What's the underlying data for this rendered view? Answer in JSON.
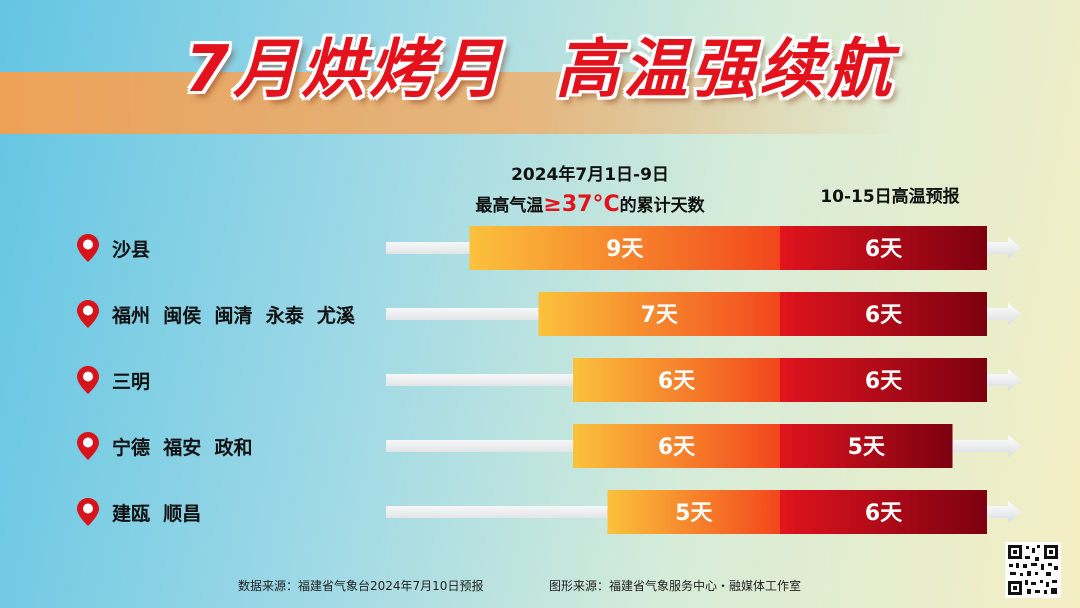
{
  "title": {
    "part1": "7月烘烤月",
    "part2": "高温强续航"
  },
  "header_left": {
    "line1": "2024年7月1日-9日",
    "line2_pre": "最高气温",
    "line2_hot": "≥37°C",
    "line2_post": "的累计天数"
  },
  "header_right": "10-15日高温预报",
  "footer": {
    "data_source": "数据来源：福建省气象台2024年7月10日预报",
    "graphic_source": "图形来源：福建省气象服务中心・融媒体工作室"
  },
  "colors": {
    "title": "#e3121c",
    "past_bar_start": "#fbc23c",
    "past_bar_end": "#f2461c",
    "forecast_bar_start": "#e0141e",
    "forecast_bar_end": "#7c0010",
    "pin": "#d7141c"
  },
  "chart_data": {
    "type": "bar",
    "orientation": "horizontal",
    "stacked": true,
    "categories": [
      "沙县",
      "福州  闽侯  闽清  永泰  尤溪",
      "三明",
      "宁德  福安  政和",
      "建瓯  顺昌"
    ],
    "series": [
      {
        "name": "2024年7月1日-9日 最高气温≥37°C的累计天数",
        "values": [
          9,
          7,
          6,
          6,
          5
        ],
        "labels": [
          "9天",
          "7天",
          "6天",
          "6天",
          "5天"
        ]
      },
      {
        "name": "10-15日高温预报",
        "values": [
          6,
          6,
          6,
          5,
          6
        ],
        "labels": [
          "6天",
          "6天",
          "6天",
          "5天",
          "6天"
        ]
      }
    ]
  }
}
